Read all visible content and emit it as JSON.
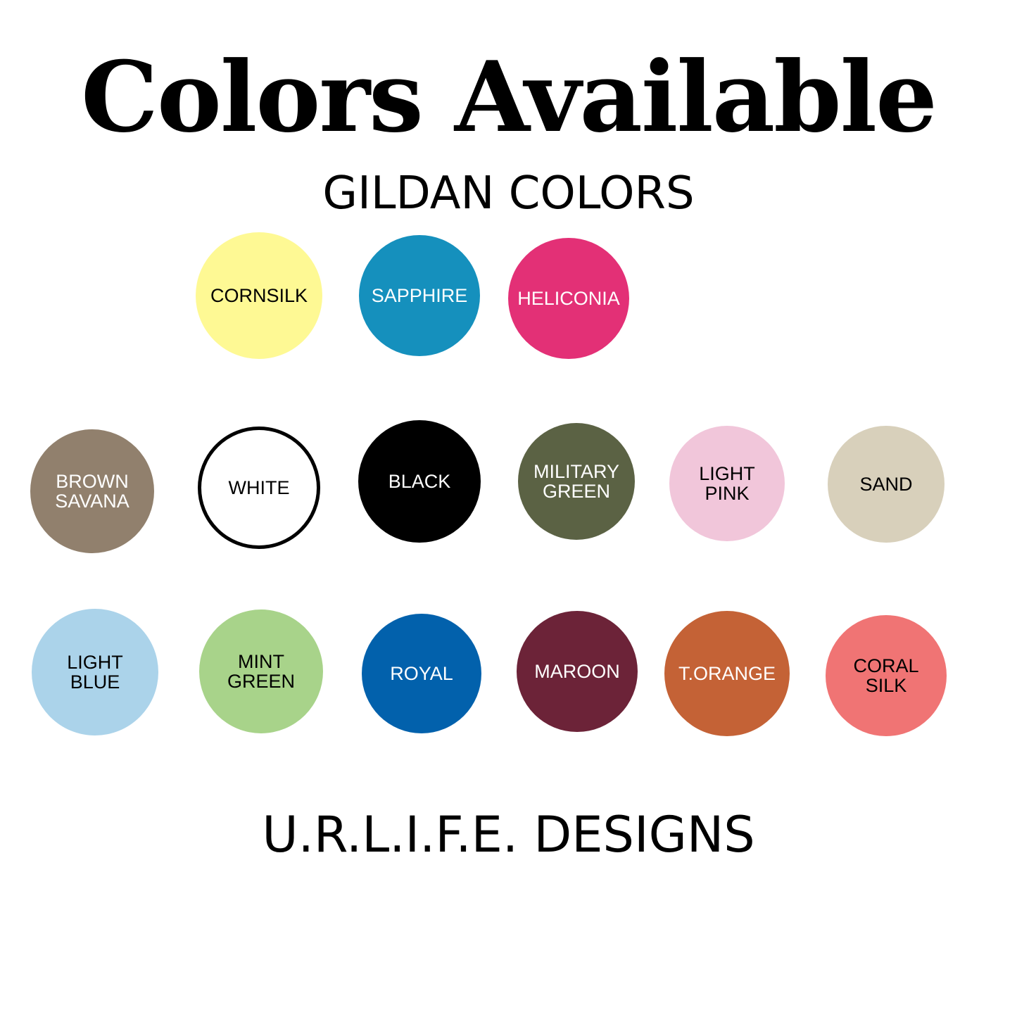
{
  "title": "Colors Available",
  "subtitle": "GILDAN COLORS",
  "footer": "U.R.L.I.F.E. DESIGNS",
  "swatches": [
    {
      "label": "CORNSILK",
      "color": "#fef994",
      "text": "#000000"
    },
    {
      "label": "SAPPHIRE",
      "color": "#1590bd",
      "text": "#ffffff"
    },
    {
      "label": "HELICONIA",
      "color": "#e33076",
      "text": "#ffffff"
    },
    {
      "label": "BROWN\nSAVANA",
      "color": "#91806d",
      "text": "#ffffff"
    },
    {
      "label": "WHITE",
      "color": "#ffffff",
      "text": "#000000"
    },
    {
      "label": "BLACK",
      "color": "#000000",
      "text": "#ffffff"
    },
    {
      "label": "MILITARY\nGREEN",
      "color": "#5b6244",
      "text": "#ffffff"
    },
    {
      "label": "LIGHT\nPINK",
      "color": "#f1c6da",
      "text": "#000000"
    },
    {
      "label": "SAND",
      "color": "#d8d0bb",
      "text": "#000000"
    },
    {
      "label": "LIGHT\nBLUE",
      "color": "#abd3ea",
      "text": "#000000"
    },
    {
      "label": "MINT\nGREEN",
      "color": "#a8d38a",
      "text": "#000000"
    },
    {
      "label": "ROYAL",
      "color": "#0261ac",
      "text": "#ffffff"
    },
    {
      "label": "MAROON",
      "color": "#6c2338",
      "text": "#ffffff"
    },
    {
      "label": "T.ORANGE",
      "color": "#c46236",
      "text": "#ffffff"
    },
    {
      "label": "CORAL\nSILK",
      "color": "#f07474",
      "text": "#000000"
    }
  ]
}
